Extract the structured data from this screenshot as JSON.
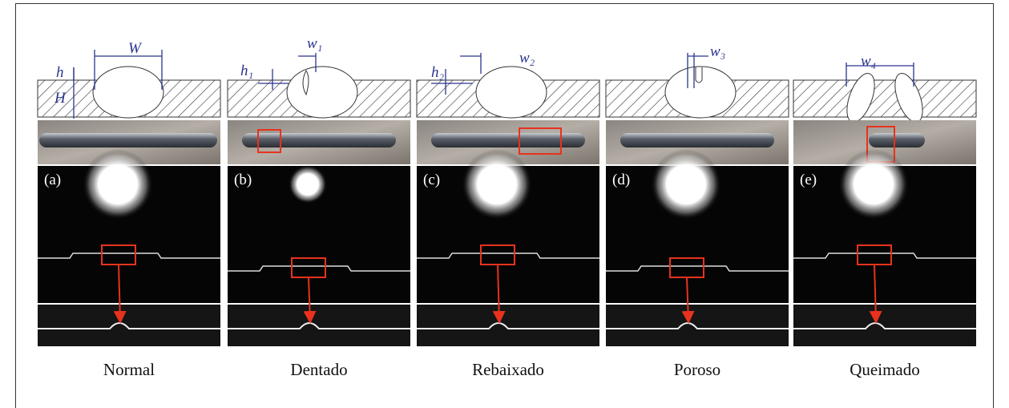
{
  "panels": [
    {
      "label": "(a)",
      "caption": "Normal",
      "dimensions": [
        "W",
        "h",
        "H"
      ]
    },
    {
      "label": "(b)",
      "caption": "Dentado",
      "dimensions": [
        "w₁",
        "h₁"
      ]
    },
    {
      "label": "(c)",
      "caption": "Rebaixado",
      "dimensions": [
        "w₂",
        "h₂"
      ]
    },
    {
      "label": "(d)",
      "caption": "Poroso",
      "dimensions": [
        "w₃"
      ]
    },
    {
      "label": "(e)",
      "caption": "Queimado",
      "dimensions": [
        "w₄"
      ]
    }
  ]
}
